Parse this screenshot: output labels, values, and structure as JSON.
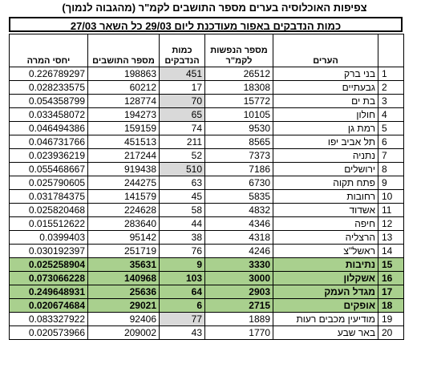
{
  "title": "צפיפות  האוכלוסיה בערים    מספר התושבים  לקמ\"ר (מהגבוה לנמוך)",
  "subtitle": "כמות הנדבקים באפור מעודכנת ליום 29/03   כל השאר 27/03",
  "headers": {
    "ratio": "יחסי המרה",
    "residents": "מספר התושבים",
    "infected": "כמות הנדבקים",
    "density": "מספר הנפשות לקמ\"ר",
    "city": "הערים"
  },
  "rows": [
    {
      "ratio": "0.226789297",
      "residents": "198863",
      "infected": "451",
      "density": "26512",
      "city": "בני ברק",
      "idx": "1",
      "gray": true,
      "hl": false
    },
    {
      "ratio": "0.028233575",
      "residents": "60212",
      "infected": "17",
      "density": "18308",
      "city": "גבעתיים",
      "idx": "2",
      "gray": false,
      "hl": false
    },
    {
      "ratio": "0.054358799",
      "residents": "128774",
      "infected": "70",
      "density": "15772",
      "city": "בת ים",
      "idx": "3",
      "gray": true,
      "hl": false
    },
    {
      "ratio": "0.033458072",
      "residents": "194273",
      "infected": "65",
      "density": "10105",
      "city": "חולון",
      "idx": "4",
      "gray": true,
      "hl": false
    },
    {
      "ratio": "0.046494386",
      "residents": "159159",
      "infected": "74",
      "density": "9530",
      "city": "רמת גן",
      "idx": "5",
      "gray": false,
      "hl": false
    },
    {
      "ratio": "0.046731766",
      "residents": "451513",
      "infected": "211",
      "density": "8565",
      "city": "תל אביב יפו",
      "idx": "6",
      "gray": false,
      "hl": false
    },
    {
      "ratio": "0.023936219",
      "residents": "217244",
      "infected": "52",
      "density": "7373",
      "city": "נתניה",
      "idx": "7",
      "gray": false,
      "hl": false
    },
    {
      "ratio": "0.055468667",
      "residents": "919438",
      "infected": "510",
      "density": "7186",
      "city": "ירושלים",
      "idx": "8",
      "gray": true,
      "hl": false
    },
    {
      "ratio": "0.025790605",
      "residents": "244275",
      "infected": "63",
      "density": "6730",
      "city": "פתח תקוה",
      "idx": "9",
      "gray": false,
      "hl": false
    },
    {
      "ratio": "0.031784375",
      "residents": "141579",
      "infected": "45",
      "density": "5835",
      "city": "רחובות",
      "idx": "10",
      "gray": false,
      "hl": false
    },
    {
      "ratio": "0.025820468",
      "residents": "224628",
      "infected": "58",
      "density": "4832",
      "city": "אשדוד",
      "idx": "11",
      "gray": false,
      "hl": false
    },
    {
      "ratio": "0.015512622",
      "residents": "283640",
      "infected": "44",
      "density": "4346",
      "city": "חיפה",
      "idx": "12",
      "gray": false,
      "hl": false
    },
    {
      "ratio": "0.0399403",
      "residents": "95142",
      "infected": "38",
      "density": "4318",
      "city": "הרצליה",
      "idx": "13",
      "gray": false,
      "hl": false
    },
    {
      "ratio": "0.030192397",
      "residents": "251719",
      "infected": "76",
      "density": "4246",
      "city": "ראשל\"צ",
      "idx": "14",
      "gray": false,
      "hl": false
    },
    {
      "ratio": "0.025258904",
      "residents": "35631",
      "infected": "9",
      "density": "3330",
      "city": "נתיבות",
      "idx": "15",
      "gray": false,
      "hl": true
    },
    {
      "ratio": "0.073066228",
      "residents": "140968",
      "infected": "103",
      "density": "3000",
      "city": "אשקלון",
      "idx": "16",
      "gray": false,
      "hl": true
    },
    {
      "ratio": "0.249648931",
      "residents": "25636",
      "infected": "64",
      "density": "2903",
      "city": "מגדל  העמק",
      "idx": "17",
      "gray": false,
      "hl": true
    },
    {
      "ratio": "0.020674684",
      "residents": "29021",
      "infected": "6",
      "density": "2715",
      "city": "אופקים",
      "idx": "18",
      "gray": false,
      "hl": true
    },
    {
      "ratio": "0.083327922",
      "residents": "92406",
      "infected": "77",
      "density": "1889",
      "city": "מודיעין מכבים רעות",
      "idx": "19",
      "gray": true,
      "hl": false
    },
    {
      "ratio": "0.020573966",
      "residents": "209002",
      "infected": "43",
      "density": "1770",
      "city": "באר שבע",
      "idx": "20",
      "gray": false,
      "hl": false
    }
  ]
}
